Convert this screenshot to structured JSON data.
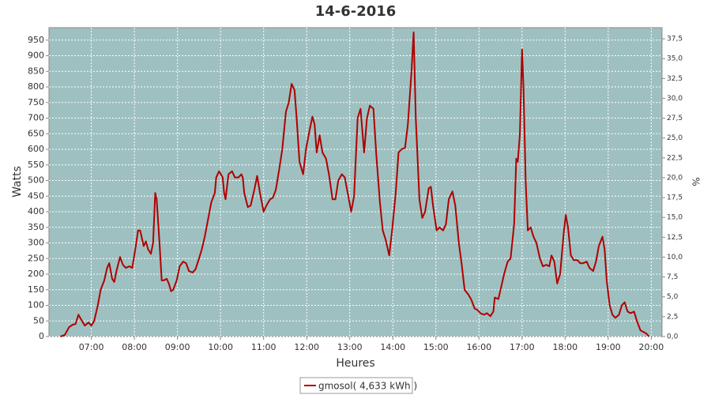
{
  "chart_data": {
    "type": "line",
    "title": "14-6-2016",
    "xlabel": "Heures",
    "ylabel": "Watts",
    "y2label": "%",
    "x": [
      "06:17",
      "06:23",
      "06:29",
      "06:34",
      "06:38",
      "06:42",
      "06:47",
      "06:51",
      "06:56",
      "07:00",
      "07:04",
      "07:09",
      "07:13",
      "07:18",
      "07:22",
      "07:25",
      "07:29",
      "07:32",
      "07:35",
      "07:40",
      "07:44",
      "07:48",
      "07:53",
      "07:57",
      "08:02",
      "08:05",
      "08:08",
      "08:13",
      "08:16",
      "08:19",
      "08:23",
      "08:26",
      "08:29",
      "08:31",
      "08:35",
      "08:38",
      "08:41",
      "08:45",
      "08:48",
      "08:51",
      "08:54",
      "08:59",
      "09:03",
      "09:08",
      "09:12",
      "09:16",
      "09:21",
      "09:25",
      "09:30",
      "09:34",
      "09:38",
      "09:43",
      "09:47",
      "09:52",
      "09:54",
      "09:58",
      "10:03",
      "10:05",
      "10:07",
      "10:11",
      "10:16",
      "10:20",
      "10:25",
      "10:29",
      "10:31",
      "10:33",
      "10:38",
      "10:42",
      "10:47",
      "10:51",
      "10:55",
      "11:00",
      "11:04",
      "11:09",
      "11:13",
      "11:17",
      "11:22",
      "11:26",
      "11:31",
      "11:35",
      "11:39",
      "11:43",
      "11:46",
      "11:50",
      "11:55",
      "11:59",
      "12:04",
      "12:08",
      "12:11",
      "12:14",
      "12:18",
      "12:22",
      "12:27",
      "12:31",
      "12:36",
      "12:40",
      "12:44",
      "12:49",
      "12:53",
      "12:58",
      "13:02",
      "13:06",
      "13:11",
      "13:15",
      "13:20",
      "13:24",
      "13:28",
      "13:33",
      "13:37",
      "13:42",
      "13:46",
      "13:50",
      "13:55",
      "13:59",
      "14:04",
      "14:08",
      "14:12",
      "14:17",
      "14:21",
      "14:26",
      "14:29",
      "14:32",
      "14:37",
      "14:41",
      "14:45",
      "14:50",
      "14:53",
      "14:56",
      "15:01",
      "15:05",
      "15:10",
      "15:14",
      "15:18",
      "15:23",
      "15:27",
      "15:32",
      "15:36",
      "15:40",
      "15:45",
      "15:49",
      "15:54",
      "15:58",
      "16:02",
      "16:07",
      "16:11",
      "16:16",
      "16:20",
      "16:22",
      "16:27",
      "16:31",
      "16:35",
      "16:40",
      "16:44",
      "16:49",
      "16:52",
      "16:54",
      "16:57",
      "17:00",
      "17:02",
      "17:05",
      "17:08",
      "17:12",
      "17:16",
      "17:20",
      "17:25",
      "17:29",
      "17:34",
      "17:38",
      "17:41",
      "17:45",
      "17:49",
      "17:53",
      "17:58",
      "18:01",
      "18:04",
      "18:08",
      "18:12",
      "18:17",
      "18:21",
      "18:25",
      "18:30",
      "18:34",
      "18:39",
      "18:43",
      "18:47",
      "18:52",
      "18:55",
      "18:58",
      "19:02",
      "19:06",
      "19:10",
      "19:15",
      "19:19",
      "19:23",
      "19:27",
      "19:31",
      "19:36",
      "19:40",
      "19:45",
      "19:49",
      "19:53",
      "19:57"
    ],
    "series": [
      {
        "name": "gmosol( 4,633 kWh )",
        "color": "#b00000",
        "values": [
          0,
          5,
          30,
          38,
          40,
          70,
          50,
          35,
          45,
          35,
          50,
          100,
          150,
          180,
          220,
          235,
          185,
          175,
          210,
          255,
          230,
          220,
          225,
          220,
          290,
          340,
          340,
          290,
          305,
          280,
          265,
          300,
          460,
          440,
          300,
          180,
          180,
          185,
          170,
          145,
          150,
          180,
          225,
          240,
          235,
          210,
          205,
          215,
          250,
          280,
          320,
          380,
          430,
          460,
          510,
          530,
          510,
          460,
          440,
          520,
          530,
          510,
          510,
          520,
          510,
          460,
          415,
          420,
          470,
          515,
          460,
          400,
          420,
          440,
          445,
          470,
          540,
          600,
          720,
          750,
          810,
          790,
          700,
          560,
          520,
          600,
          660,
          705,
          680,
          590,
          645,
          590,
          570,
          520,
          440,
          440,
          500,
          520,
          510,
          450,
          400,
          450,
          700,
          730,
          590,
          700,
          740,
          730,
          580,
          430,
          340,
          310,
          260,
          340,
          460,
          590,
          600,
          605,
          680,
          850,
          975,
          700,
          440,
          380,
          400,
          475,
          480,
          420,
          340,
          350,
          340,
          360,
          440,
          465,
          420,
          300,
          230,
          150,
          135,
          120,
          90,
          85,
          75,
          70,
          75,
          65,
          80,
          125,
          120,
          160,
          200,
          240,
          250,
          360,
          570,
          560,
          650,
          920,
          800,
          500,
          340,
          350,
          320,
          300,
          250,
          225,
          230,
          225,
          260,
          240,
          170,
          200,
          330,
          390,
          350,
          260,
          245,
          245,
          235,
          235,
          240,
          220,
          210,
          240,
          290,
          320,
          280,
          180,
          100,
          70,
          60,
          70,
          100,
          110,
          80,
          75,
          80,
          50,
          20,
          15,
          10,
          0
        ]
      }
    ],
    "xlim": [
      "06:01",
      "20:15"
    ],
    "xticks": [
      "07:00",
      "08:00",
      "09:00",
      "10:00",
      "11:00",
      "12:00",
      "13:00",
      "14:00",
      "15:00",
      "16:00",
      "17:00",
      "18:00",
      "19:00",
      "20:00"
    ],
    "ylim": [
      0,
      990
    ],
    "yticks": [
      0,
      50,
      100,
      150,
      200,
      250,
      300,
      350,
      400,
      450,
      500,
      550,
      600,
      650,
      700,
      750,
      800,
      850,
      900,
      950
    ],
    "y2lim": [
      0,
      38.9
    ],
    "y2ticks": [
      {
        "value": 0,
        "label": "0,0"
      },
      {
        "value": 2.5,
        "label": "2,5"
      },
      {
        "value": 5,
        "label": "5,0"
      },
      {
        "value": 7.5,
        "label": "7,5"
      },
      {
        "value": 10,
        "label": "10,0"
      },
      {
        "value": 12.5,
        "label": "12,5"
      },
      {
        "value": 15,
        "label": "15,0"
      },
      {
        "value": 17.5,
        "label": "17,5"
      },
      {
        "value": 20,
        "label": "20,0"
      },
      {
        "value": 22.5,
        "label": "22,5"
      },
      {
        "value": 25,
        "label": "25,0"
      },
      {
        "value": 27.5,
        "label": "27,5"
      },
      {
        "value": 30,
        "label": "30,0"
      },
      {
        "value": 32.5,
        "label": "32,5"
      },
      {
        "value": 35,
        "label": "35,0"
      },
      {
        "value": 37.5,
        "label": "37,5"
      }
    ],
    "grid": true,
    "background": "#9fc0c0"
  }
}
